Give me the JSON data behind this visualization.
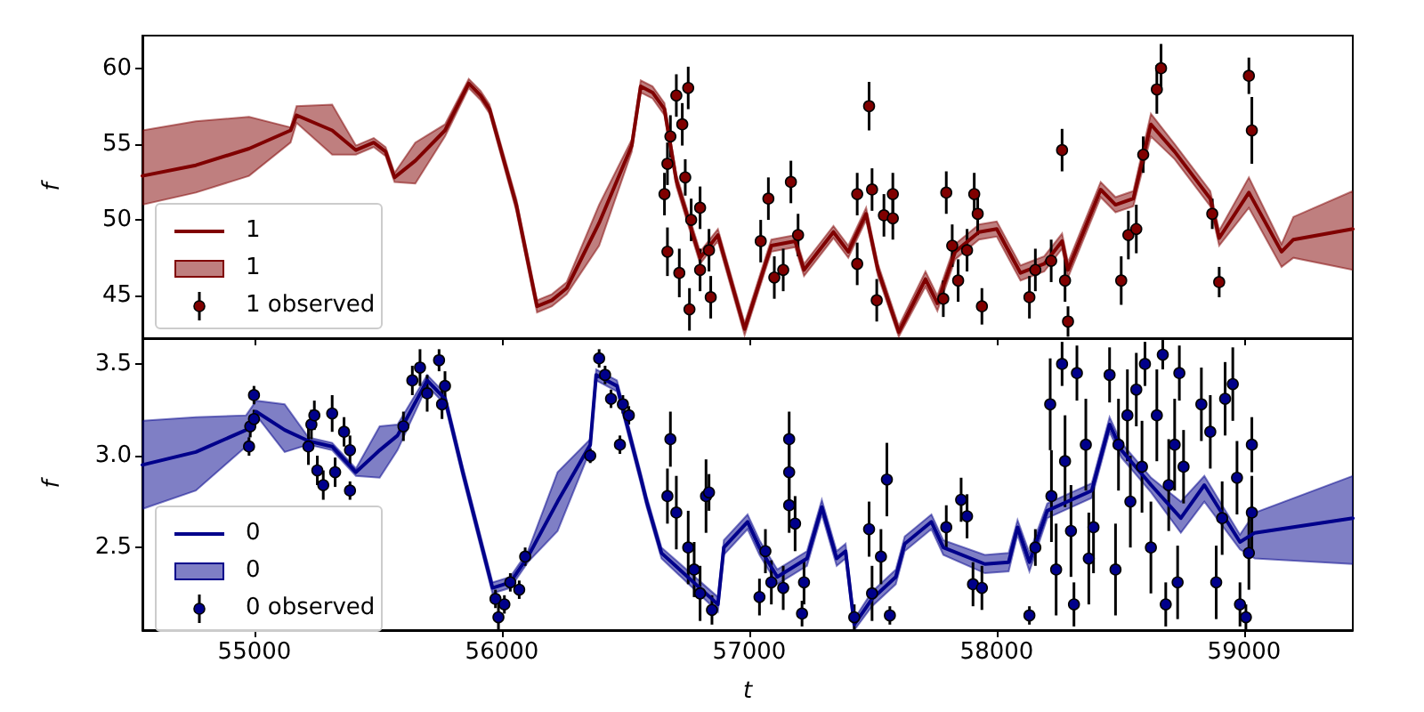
{
  "chart_data": [
    {
      "type": "line",
      "ylabel": "f",
      "xlim": [
        54547,
        59439
      ],
      "ylim": [
        42.2,
        62.15
      ],
      "xticks": [
        55000,
        56000,
        57000,
        58000,
        59000
      ],
      "yticks": [
        45,
        50,
        55,
        60
      ],
      "tick_labels": "y",
      "legend": "bottom left",
      "series": [
        {
          "name": "1",
          "type": "line",
          "color": "#800000",
          "x": [
            54547,
            54763,
            54978,
            55146,
            55170,
            55314,
            55410,
            55482,
            55530,
            55566,
            55650,
            55770,
            55866,
            55914,
            55950,
            56058,
            56142,
            56202,
            56262,
            56393,
            56525,
            56561,
            56609,
            56657,
            56705,
            56801,
            56873,
            56981,
            57065,
            57089,
            57185,
            57221,
            57340,
            57400,
            57472,
            57520,
            57604,
            57712,
            57760,
            57832,
            57928,
            58000,
            58096,
            58192,
            58264,
            58288,
            58420,
            58480,
            58552,
            58623,
            58719,
            58863,
            58899,
            59019,
            59151,
            59199,
            59439
          ],
          "values": [
            52.9,
            53.6,
            54.7,
            55.9,
            56.9,
            55.9,
            54.6,
            55.1,
            54.5,
            52.8,
            53.9,
            55.9,
            59.0,
            58.2,
            57.3,
            51.0,
            44.3,
            44.7,
            45.5,
            49.8,
            54.9,
            58.8,
            58.4,
            57.3,
            52.6,
            47.5,
            49.0,
            42.8,
            47.1,
            48.3,
            48.6,
            46.7,
            49.2,
            47.9,
            50.4,
            46.7,
            42.6,
            46.1,
            44.5,
            47.9,
            49.2,
            49.4,
            46.5,
            47.1,
            48.6,
            46.7,
            52.0,
            51.0,
            51.4,
            56.3,
            54.5,
            51.4,
            48.8,
            51.8,
            47.9,
            48.7,
            49.4
          ],
          "upper": [
            55.9,
            56.5,
            56.8,
            56.1,
            57.5,
            57.6,
            54.9,
            55.4,
            54.8,
            53.1,
            55.1,
            56.3,
            59.3,
            58.5,
            57.6,
            51.4,
            44.7,
            45.1,
            45.9,
            51.0,
            55.3,
            59.2,
            58.8,
            57.7,
            53.0,
            47.9,
            49.4,
            43.2,
            47.5,
            48.7,
            49.0,
            47.1,
            49.6,
            48.3,
            50.8,
            47.1,
            43.0,
            46.6,
            45.0,
            48.4,
            49.7,
            49.9,
            47.0,
            47.6,
            49.1,
            47.2,
            52.5,
            51.5,
            51.9,
            57.0,
            55.0,
            51.9,
            49.3,
            52.8,
            48.4,
            50.2,
            51.9
          ],
          "lower": [
            51.0,
            51.8,
            52.9,
            55.1,
            56.4,
            54.3,
            54.3,
            54.8,
            54.2,
            52.5,
            52.4,
            55.5,
            58.7,
            57.9,
            57.0,
            50.6,
            43.9,
            44.3,
            45.1,
            48.3,
            54.5,
            58.4,
            58.0,
            56.9,
            52.2,
            47.1,
            48.6,
            42.4,
            46.7,
            47.9,
            48.2,
            46.3,
            48.8,
            47.5,
            50.0,
            46.3,
            42.3,
            45.6,
            44.0,
            47.4,
            48.7,
            48.9,
            46.0,
            46.6,
            48.1,
            46.2,
            51.5,
            50.5,
            50.9,
            55.5,
            54.0,
            50.9,
            48.3,
            50.8,
            46.9,
            47.5,
            46.7
          ]
        },
        {
          "name": "1 observed",
          "type": "scatter",
          "marker": "circle",
          "color": "#800000",
          "x": [
            56657,
            56669,
            56681,
            56705,
            56753,
            56729,
            56669,
            56717,
            56753,
            56801,
            56741,
            56765,
            56801,
            56844,
            56837,
            56758,
            57046,
            57077,
            57101,
            57137,
            57168,
            57197,
            57436,
            57436,
            57484,
            57496,
            57515,
            57544,
            57580,
            57580,
            57796,
            57784,
            57820,
            57844,
            57880,
            57909,
            57923,
            57940,
            58132,
            58156,
            58220,
            58264,
            58276,
            58288,
            58503,
            58532,
            58564,
            58592,
            58647,
            58664,
            58871,
            58899,
            59019,
            59031
          ],
          "values": [
            51.7,
            53.7,
            55.5,
            58.2,
            58.7,
            56.3,
            47.9,
            46.5,
            null,
            46.7,
            52.8,
            50.0,
            50.8,
            44.9,
            48.0,
            44.1,
            48.6,
            51.4,
            46.2,
            46.7,
            52.5,
            49.0,
            51.7,
            47.1,
            57.5,
            52.0,
            44.7,
            50.3,
            51.7,
            50.1,
            51.8,
            44.8,
            48.3,
            46.0,
            48.0,
            51.7,
            50.4,
            44.3,
            44.9,
            46.7,
            47.3,
            54.6,
            46.0,
            43.3,
            46.0,
            49.0,
            49.4,
            54.3,
            58.6,
            60.0,
            50.4,
            45.9,
            59.5,
            55.9
          ],
          "errors": [
            1.4,
            1.4,
            1.4,
            1.4,
            1.4,
            1.4,
            1.6,
            1.6,
            null,
            1.4,
            1.2,
            1.4,
            1.4,
            1.4,
            1.4,
            1.4,
            1.4,
            1.4,
            1.4,
            1.4,
            1.4,
            1.4,
            1.4,
            1.4,
            1.6,
            1.4,
            1.4,
            1.4,
            1.4,
            1.4,
            1.4,
            1.2,
            1.4,
            1.4,
            1.4,
            1.4,
            1.4,
            1.2,
            1.4,
            1.4,
            1.4,
            1.4,
            1.4,
            1.0,
            1.6,
            1.6,
            1.6,
            1.2,
            1.6,
            1.6,
            1.0,
            1.0,
            1.2,
            2.2
          ]
        }
      ]
    },
    {
      "type": "line",
      "xlabel": "t",
      "ylabel": "f",
      "xlim": [
        54547,
        59439
      ],
      "ylim": [
        2.05,
        3.64
      ],
      "xticks": [
        55000,
        56000,
        57000,
        58000,
        59000
      ],
      "yticks": [
        2.5,
        {
          "value": 3,
          "label": "3.0"
        },
        3.5
      ],
      "legend": "bottom left",
      "series": [
        {
          "name": "0",
          "type": "line",
          "color": "#00008b",
          "x": [
            54547,
            54763,
            54966,
            55007,
            55122,
            55218,
            55314,
            55410,
            55506,
            55578,
            55698,
            55770,
            55842,
            55962,
            56034,
            56105,
            56225,
            56357,
            56381,
            56465,
            56513,
            56561,
            56585,
            56645,
            56873,
            56897,
            56993,
            57041,
            57113,
            57233,
            57293,
            57353,
            57389,
            57424,
            57496,
            57592,
            57628,
            57736,
            57784,
            57952,
            58048,
            58084,
            58132,
            58204,
            58384,
            58456,
            58504,
            58624,
            58744,
            58839,
            58983,
            59043,
            59439
          ],
          "values": [
            2.95,
            3.02,
            3.14,
            3.24,
            3.14,
            3.08,
            3.05,
            2.91,
            3.03,
            3.11,
            3.41,
            3.31,
            2.91,
            2.28,
            2.31,
            2.45,
            2.75,
            3.06,
            3.44,
            3.38,
            3.13,
            2.88,
            2.75,
            2.47,
            2.19,
            2.5,
            2.64,
            2.5,
            2.34,
            2.44,
            2.72,
            2.44,
            2.48,
            2.08,
            2.22,
            2.34,
            2.52,
            2.64,
            2.5,
            2.41,
            2.42,
            2.61,
            2.42,
            2.7,
            2.81,
            3.17,
            3.03,
            2.84,
            2.66,
            2.84,
            2.53,
            2.58,
            2.66
          ],
          "upper": [
            3.19,
            3.21,
            3.22,
            3.3,
            3.28,
            3.1,
            3.07,
            2.93,
            3.16,
            3.17,
            3.44,
            3.34,
            2.94,
            2.31,
            2.34,
            2.48,
            2.91,
            3.09,
            3.47,
            3.41,
            3.16,
            2.91,
            2.78,
            2.5,
            2.23,
            2.54,
            2.68,
            2.54,
            2.38,
            2.48,
            2.76,
            2.48,
            2.52,
            2.11,
            2.26,
            2.38,
            2.56,
            2.68,
            2.54,
            2.46,
            2.47,
            2.65,
            2.47,
            2.74,
            2.85,
            3.21,
            3.07,
            2.88,
            2.75,
            2.89,
            2.57,
            2.69,
            2.89
          ],
          "lower": [
            2.71,
            2.81,
            3.05,
            3.22,
            3.02,
            3.06,
            3.03,
            2.89,
            2.88,
            3.03,
            3.38,
            3.28,
            2.88,
            2.25,
            2.28,
            2.42,
            2.59,
            3.03,
            3.41,
            3.35,
            3.1,
            2.85,
            2.72,
            2.44,
            2.15,
            2.46,
            2.6,
            2.46,
            2.3,
            2.4,
            2.68,
            2.4,
            2.44,
            2.05,
            2.18,
            2.3,
            2.48,
            2.6,
            2.46,
            2.36,
            2.37,
            2.57,
            2.37,
            2.66,
            2.77,
            3.13,
            2.99,
            2.8,
            2.58,
            2.75,
            2.49,
            2.44,
            2.41
          ]
        },
        {
          "name": "0 observed",
          "type": "scatter",
          "marker": "circle",
          "color": "#00008b",
          "x": [
            54983,
            54978,
            54998,
            54998,
            55218,
            55230,
            55242,
            55254,
            55278,
            55314,
            55326,
            55362,
            55386,
            55386,
            55602,
            55638,
            55669,
            55698,
            55746,
            55758,
            55770,
            55974,
            55986,
            56010,
            56034,
            56070,
            56094,
            56357,
            56393,
            56417,
            56441,
            56477,
            56489,
            56513,
            56681,
            56669,
            56705,
            56753,
            56801,
            56825,
            56837,
            56777,
            56849,
            57041,
            57065,
            57089,
            57137,
            57161,
            57161,
            57161,
            57185,
            57213,
            57221,
            57424,
            57484,
            57496,
            57556,
            57568,
            57532,
            57796,
            57856,
            57880,
            57904,
            57940,
            58132,
            58156,
            58216,
            58221,
            58240,
            58264,
            58276,
            58300,
            58312,
            58324,
            58360,
            58372,
            58391,
            58456,
            58480,
            58492,
            58528,
            58540,
            58564,
            58587,
            58599,
            58623,
            58647,
            58671,
            58683,
            58695,
            58719,
            58731,
            58738,
            58755,
            58827,
            58863,
            58887,
            58911,
            58923,
            58954,
            58971,
            58983,
            59007,
            59019,
            59031,
            59031
          ],
          "values": [
            3.16,
            3.05,
            3.33,
            3.2,
            3.05,
            3.17,
            3.22,
            2.92,
            2.84,
            3.23,
            2.91,
            3.13,
            2.81,
            3.03,
            3.16,
            3.41,
            3.48,
            3.34,
            3.52,
            3.28,
            3.38,
            2.22,
            2.12,
            2.19,
            2.31,
            2.27,
            2.45,
            3.0,
            3.53,
            3.44,
            3.31,
            3.06,
            3.28,
            3.22,
            3.09,
            2.78,
            2.69,
            2.5,
            2.25,
            2.78,
            2.8,
            2.38,
            2.16,
            2.23,
            2.48,
            2.31,
            2.28,
            3.09,
            2.91,
            2.73,
            2.63,
            2.14,
            2.31,
            2.12,
            2.6,
            2.25,
            2.87,
            2.13,
            2.45,
            2.61,
            2.76,
            2.67,
            2.3,
            2.28,
            2.13,
            2.5,
            3.28,
            2.78,
            2.38,
            3.5,
            2.97,
            2.59,
            2.19,
            3.45,
            3.06,
            2.44,
            2.61,
            3.44,
            2.38,
            3.06,
            3.22,
            2.75,
            3.36,
            2.94,
            3.5,
            2.5,
            3.22,
            3.55,
            2.19,
            2.84,
            3.06,
            2.31,
            3.45,
            2.94,
            3.28,
            3.13,
            2.31,
            2.66,
            3.31,
            3.39,
            2.88,
            2.19,
            2.12,
            2.47,
            3.06,
            2.69
          ],
          "errors": [
            0.06,
            0.05,
            0.05,
            0.05,
            0.1,
            0.08,
            0.08,
            0.08,
            0.08,
            0.1,
            0.08,
            0.08,
            0.05,
            0.08,
            0.08,
            0.08,
            0.1,
            0.1,
            0.06,
            0.08,
            0.08,
            0.05,
            0.07,
            0.05,
            0.05,
            0.05,
            0.05,
            0.04,
            0.05,
            0.05,
            0.05,
            0.05,
            0.05,
            0.05,
            0.15,
            0.15,
            0.2,
            0.2,
            0.15,
            0.2,
            0.1,
            0.15,
            0.08,
            0.1,
            0.12,
            0.12,
            0.12,
            0.15,
            0.15,
            0.15,
            0.15,
            0.07,
            0.12,
            0.07,
            0.15,
            0.15,
            0.2,
            0.05,
            0.15,
            0.12,
            0.12,
            0.12,
            0.12,
            0.12,
            0.05,
            0.1,
            0.25,
            0.25,
            0.25,
            0.12,
            0.25,
            0.25,
            0.12,
            0.15,
            0.25,
            0.25,
            0.25,
            0.15,
            0.25,
            0.25,
            0.25,
            0.25,
            0.2,
            0.25,
            0.12,
            0.25,
            0.25,
            0.08,
            0.12,
            0.25,
            0.25,
            0.2,
            0.15,
            0.2,
            0.2,
            0.2,
            0.2,
            0.2,
            0.2,
            0.2,
            0.2,
            0.12,
            0.07,
            0.2,
            0.15,
            0.2
          ]
        }
      ]
    }
  ]
}
